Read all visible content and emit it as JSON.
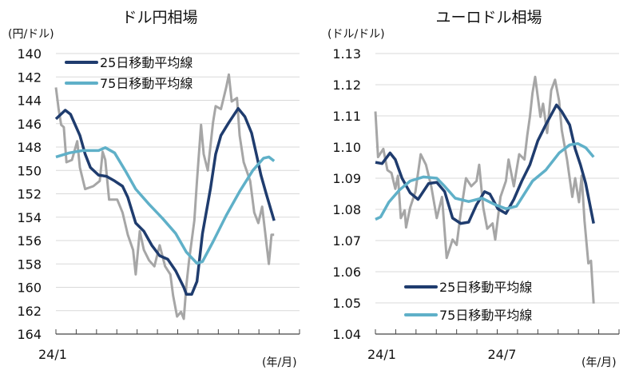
{
  "colors": {
    "ma25": "#1f3c6e",
    "ma75": "#5fb0c8",
    "spot": "#a6a6a6",
    "grid": "#d9d9d9",
    "axis": "#444444"
  },
  "chart_data": [
    {
      "type": "line",
      "title": "ドル円相場",
      "ylabel": "(円/ドル)",
      "xlabel": "(年/月)",
      "x_unit": "months since 24/1",
      "xlim": [
        0,
        12
      ],
      "ylim": [
        140,
        164
      ],
      "y_inverted": true,
      "yticks": [
        "140",
        "142",
        "144",
        "146",
        "148",
        "150",
        "152",
        "154",
        "156",
        "158",
        "160",
        "162",
        "164"
      ],
      "xtick_labels": [
        {
          "x": 0,
          "label": "24/1"
        }
      ],
      "grid": true,
      "legend_position": "top-left",
      "series": [
        {
          "name": "spot",
          "legend": false,
          "color_key": "spot",
          "x": [
            0,
            0.13,
            0.26,
            0.39,
            0.52,
            0.79,
            1.05,
            1.18,
            1.44,
            1.84,
            2.16,
            2.3,
            2.43,
            2.62,
            3.02,
            3.28,
            3.54,
            3.8,
            3.93,
            4.13,
            4.33,
            4.59,
            4.85,
            5.11,
            5.38,
            5.64,
            5.77,
            5.97,
            6.16,
            6.3,
            6.43,
            6.56,
            6.82,
            6.95,
            7.15,
            7.28,
            7.48,
            7.74,
            7.87,
            8.13,
            8.39,
            8.52,
            8.66,
            8.92,
            9.05,
            9.25,
            9.57,
            9.77,
            9.97,
            10.16,
            10.3,
            10.49,
            10.62,
            10.75
          ],
          "y": [
            142.9,
            144.7,
            146.1,
            146.3,
            149.3,
            149.1,
            147.5,
            149.75,
            151.6,
            151.35,
            150.9,
            148.4,
            149.1,
            152.5,
            152.5,
            153.6,
            155.5,
            156.8,
            158.9,
            155.2,
            156.8,
            157.7,
            158.2,
            156.4,
            158.2,
            158.9,
            160.7,
            162.5,
            162.1,
            162.7,
            159.8,
            157.7,
            154.3,
            150.9,
            146.1,
            148.6,
            150.0,
            145.9,
            144.5,
            144.75,
            142.9,
            141.8,
            144.1,
            143.8,
            147.0,
            149.3,
            150.9,
            153.6,
            154.5,
            153.1,
            155.2,
            158.0,
            155.5,
            155.5
          ]
        },
        {
          "name": "25日移動平均線",
          "legend": true,
          "color_key": "ma25",
          "x": [
            0,
            0.46,
            0.72,
            1.18,
            1.44,
            1.7,
            2.1,
            2.49,
            2.89,
            3.28,
            3.54,
            3.93,
            4.33,
            4.72,
            5.11,
            5.51,
            5.9,
            6.3,
            6.43,
            6.69,
            6.95,
            7.22,
            7.61,
            7.87,
            8.13,
            8.52,
            8.98,
            9.31,
            9.64,
            9.9,
            10.1,
            10.36,
            10.75
          ],
          "y": [
            145.6,
            144.85,
            145.2,
            147.0,
            148.6,
            149.75,
            150.4,
            150.5,
            150.9,
            151.35,
            152.3,
            154.5,
            155.2,
            156.4,
            157.3,
            157.6,
            158.6,
            160.0,
            160.6,
            160.6,
            159.5,
            155.4,
            151.6,
            148.6,
            147.0,
            145.9,
            144.7,
            145.4,
            146.8,
            148.8,
            150.4,
            152.0,
            154.3
          ]
        },
        {
          "name": "75日移動平均線",
          "legend": true,
          "color_key": "ma75",
          "x": [
            0,
            0.66,
            1.31,
            2.1,
            2.43,
            2.89,
            3.41,
            3.93,
            4.59,
            5.25,
            5.9,
            6.43,
            6.95,
            7.22,
            7.74,
            8.39,
            9.05,
            9.7,
            10.23,
            10.49,
            10.75
          ],
          "y": [
            148.85,
            148.5,
            148.3,
            148.3,
            148.05,
            148.5,
            150.0,
            151.6,
            152.9,
            154.1,
            155.4,
            157.0,
            157.95,
            157.8,
            156.1,
            153.85,
            151.8,
            150.0,
            148.95,
            148.85,
            149.2
          ]
        }
      ]
    },
    {
      "type": "line",
      "title": "ユーロドル相場",
      "ylabel": "(ドル/ドル)",
      "xlabel": "(年/月)",
      "x_unit": "months since 24/1",
      "xlim": [
        0,
        12
      ],
      "ylim": [
        1.04,
        1.13
      ],
      "y_inverted": false,
      "yticks": [
        "1.13",
        "1.12",
        "1.11",
        "1.10",
        "1.09",
        "1.08",
        "1.07",
        "1.06",
        "1.05",
        "1.04"
      ],
      "xtick_labels": [
        {
          "x": 0,
          "label": "24/1"
        },
        {
          "x": 6,
          "label": "24/7"
        }
      ],
      "grid": true,
      "legend_position": "bottom-center",
      "series": [
        {
          "name": "spot",
          "legend": false,
          "color_key": "spot",
          "x": [
            0,
            0.13,
            0.39,
            0.59,
            0.79,
            0.98,
            1.11,
            1.25,
            1.44,
            1.51,
            1.71,
            1.97,
            2.23,
            2.49,
            2.75,
            3.02,
            3.28,
            3.51,
            3.8,
            4.0,
            4.2,
            4.46,
            4.72,
            4.98,
            5.11,
            5.31,
            5.51,
            5.77,
            5.9,
            6.16,
            6.43,
            6.56,
            6.82,
            7.08,
            7.34,
            7.48,
            7.61,
            7.74,
            7.87,
            8.13,
            8.26,
            8.46,
            8.66,
            8.85,
            9.05,
            9.18,
            9.44,
            9.7,
            9.84,
            10.03,
            10.16,
            10.3,
            10.49,
            10.62,
            10.75
          ],
          "y": [
            1.1114,
            1.0968,
            1.0994,
            1.0926,
            1.0917,
            1.0866,
            1.0908,
            1.0772,
            1.0797,
            1.0742,
            1.0806,
            1.0857,
            1.0977,
            1.0943,
            1.0874,
            1.0772,
            1.084,
            1.0644,
            1.0703,
            1.0686,
            1.0789,
            1.09,
            1.0874,
            1.0891,
            1.0943,
            1.0806,
            1.0738,
            1.0755,
            1.0703,
            1.084,
            1.0891,
            1.096,
            1.0874,
            1.0977,
            1.096,
            1.1037,
            1.1097,
            1.1174,
            1.1225,
            1.1097,
            1.1139,
            1.1045,
            1.1182,
            1.1216,
            1.1148,
            1.1054,
            1.096,
            1.084,
            1.09,
            1.0823,
            1.0908,
            1.0763,
            1.0627,
            1.0635,
            1.0498
          ]
        },
        {
          "name": "25日移動平均線",
          "legend": true,
          "color_key": "ma25",
          "x": [
            0,
            0.33,
            0.72,
            0.98,
            1.31,
            1.71,
            2.1,
            2.62,
            3.02,
            3.41,
            3.8,
            4.2,
            4.59,
            4.98,
            5.38,
            5.64,
            6.03,
            6.43,
            6.82,
            7.21,
            7.61,
            8.0,
            8.39,
            8.92,
            9.18,
            9.57,
            9.84,
            10.1,
            10.36,
            10.75
          ],
          "y": [
            1.0951,
            1.0947,
            1.0981,
            1.096,
            1.09,
            1.0853,
            1.0832,
            1.0883,
            1.0887,
            1.0857,
            1.0772,
            1.0755,
            1.0759,
            1.0815,
            1.0857,
            1.0849,
            1.0802,
            1.0787,
            1.0832,
            1.0891,
            1.0943,
            1.102,
            1.1071,
            1.1135,
            1.1114,
            1.1071,
            1.0994,
            1.0943,
            1.0883,
            1.0755
          ]
        },
        {
          "name": "75日移動平均線",
          "legend": true,
          "color_key": "ma75",
          "x": [
            0,
            0.26,
            0.66,
            1.18,
            1.71,
            2.36,
            3.02,
            3.41,
            3.93,
            4.59,
            5.25,
            5.9,
            6.43,
            6.95,
            7.74,
            8.39,
            9.05,
            9.57,
            9.97,
            10.36,
            10.75
          ],
          "y": [
            1.0768,
            1.0776,
            1.0823,
            1.0862,
            1.0891,
            1.0904,
            1.09,
            1.0874,
            1.0836,
            1.0825,
            1.0836,
            1.0815,
            1.0802,
            1.081,
            1.0891,
            1.0926,
            1.0981,
            1.1007,
            1.1011,
            1.0998,
            1.0968
          ]
        }
      ]
    }
  ]
}
